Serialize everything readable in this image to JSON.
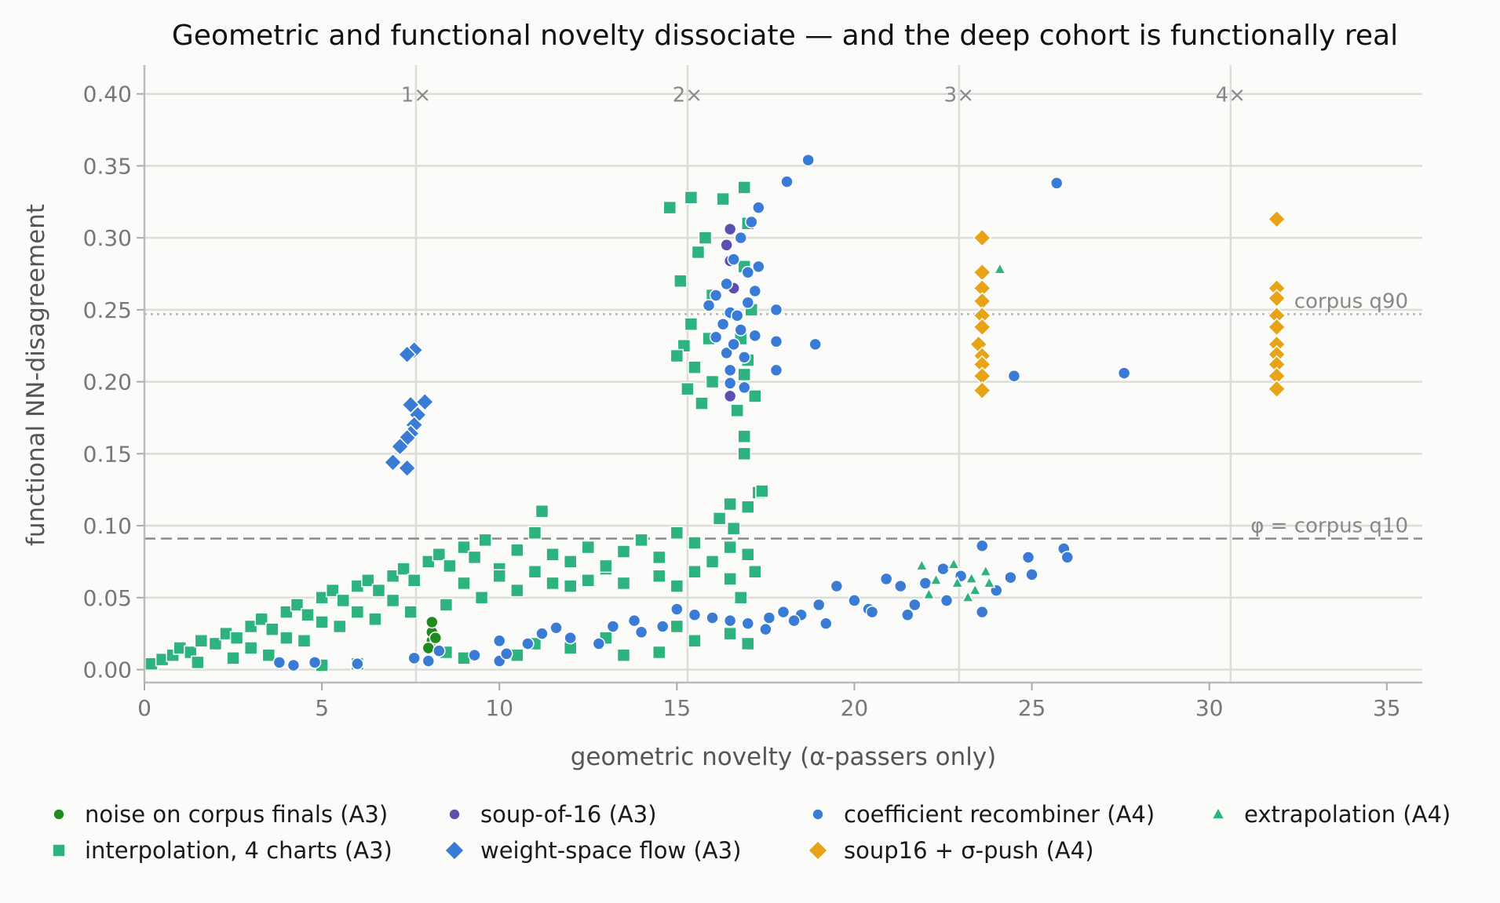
{
  "chart_data": {
    "type": "scatter",
    "title": "Geometric and functional novelty dissociate — and the deep cohort is functionally real",
    "xlabel": "geometric novelty (α-passers only)",
    "ylabel": "functional NN-disagreement",
    "xlim": [
      0,
      36
    ],
    "ylim": [
      -0.009,
      0.42
    ],
    "xticks": [
      "0",
      "5",
      "10",
      "15",
      "20",
      "25",
      "30",
      "35"
    ],
    "yticks": [
      "0.00",
      "0.05",
      "0.10",
      "0.15",
      "0.20",
      "0.25",
      "0.30",
      "0.35",
      "0.40"
    ],
    "grid": true,
    "vlines": [
      {
        "x": 7.65,
        "label": "1×"
      },
      {
        "x": 15.3,
        "label": "2×"
      },
      {
        "x": 22.95,
        "label": "3×"
      },
      {
        "x": 30.6,
        "label": "4×"
      }
    ],
    "hlines": [
      {
        "y": 0.247,
        "label": "corpus q90",
        "style": "dotted"
      },
      {
        "y": 0.091,
        "label": "φ = corpus q10",
        "style": "dashed"
      }
    ],
    "legend_position": "bottom",
    "series": [
      {
        "name": "noise on corpus finals (A3)",
        "color": "#1f8a1f",
        "marker": "circle",
        "points": [
          [
            8.1,
            0.02
          ],
          [
            8.1,
            0.026
          ],
          [
            8.1,
            0.033
          ],
          [
            8.0,
            0.015
          ],
          [
            8.2,
            0.022
          ]
        ]
      },
      {
        "name": "interpolation, 4 charts (A3)",
        "color": "#2db37d",
        "marker": "square",
        "points": [
          [
            0.2,
            0.004
          ],
          [
            0.5,
            0.007
          ],
          [
            0.8,
            0.01
          ],
          [
            1.0,
            0.015
          ],
          [
            1.3,
            0.012
          ],
          [
            1.6,
            0.02
          ],
          [
            2.0,
            0.018
          ],
          [
            2.3,
            0.025
          ],
          [
            2.6,
            0.022
          ],
          [
            3.0,
            0.03
          ],
          [
            3.3,
            0.035
          ],
          [
            3.6,
            0.028
          ],
          [
            4.0,
            0.04
          ],
          [
            4.3,
            0.045
          ],
          [
            4.6,
            0.038
          ],
          [
            5.0,
            0.05
          ],
          [
            5.3,
            0.055
          ],
          [
            5.6,
            0.048
          ],
          [
            6.0,
            0.058
          ],
          [
            6.3,
            0.062
          ],
          [
            6.6,
            0.055
          ],
          [
            7.0,
            0.065
          ],
          [
            7.3,
            0.07
          ],
          [
            7.6,
            0.062
          ],
          [
            8.0,
            0.075
          ],
          [
            8.3,
            0.08
          ],
          [
            8.6,
            0.072
          ],
          [
            9.0,
            0.085
          ],
          [
            9.3,
            0.078
          ],
          [
            9.6,
            0.09
          ],
          [
            10.0,
            0.07
          ],
          [
            10.5,
            0.083
          ],
          [
            11.0,
            0.095
          ],
          [
            11.2,
            0.11
          ],
          [
            11.5,
            0.08
          ],
          [
            12.0,
            0.075
          ],
          [
            12.5,
            0.085
          ],
          [
            13.0,
            0.07
          ],
          [
            13.5,
            0.082
          ],
          [
            14.0,
            0.09
          ],
          [
            14.5,
            0.078
          ],
          [
            15.0,
            0.095
          ],
          [
            15.5,
            0.088
          ],
          [
            16.0,
            0.075
          ],
          [
            16.5,
            0.085
          ],
          [
            17.0,
            0.08
          ],
          [
            17.2,
            0.068
          ],
          [
            1.5,
            0.005
          ],
          [
            2.5,
            0.008
          ],
          [
            3.5,
            0.01
          ],
          [
            4.5,
            0.02
          ],
          [
            5.5,
            0.03
          ],
          [
            6.5,
            0.035
          ],
          [
            7.5,
            0.04
          ],
          [
            8.5,
            0.045
          ],
          [
            9.5,
            0.05
          ],
          [
            10.5,
            0.055
          ],
          [
            11.5,
            0.06
          ],
          [
            12.5,
            0.062
          ],
          [
            13.5,
            0.06
          ],
          [
            14.5,
            0.065
          ],
          [
            15.5,
            0.068
          ],
          [
            16.5,
            0.063
          ],
          [
            9.0,
            0.06
          ],
          [
            10.0,
            0.065
          ],
          [
            12.0,
            0.058
          ],
          [
            6.0,
            0.04
          ],
          [
            5.0,
            0.033
          ],
          [
            4.0,
            0.022
          ],
          [
            3.0,
            0.015
          ],
          [
            7.0,
            0.048
          ],
          [
            11.0,
            0.068
          ],
          [
            13.0,
            0.072
          ],
          [
            15.0,
            0.058
          ],
          [
            16.8,
            0.05
          ],
          [
            5.0,
            0.003
          ],
          [
            6.0,
            0.004
          ],
          [
            8.5,
            0.012
          ],
          [
            9.0,
            0.008
          ],
          [
            10.5,
            0.01
          ],
          [
            12.0,
            0.015
          ],
          [
            13.5,
            0.01
          ],
          [
            14.5,
            0.012
          ],
          [
            15.5,
            0.02
          ],
          [
            16.5,
            0.025
          ],
          [
            17.0,
            0.018
          ],
          [
            15.0,
            0.03
          ],
          [
            13.0,
            0.022
          ],
          [
            11.0,
            0.018
          ],
          [
            14.8,
            0.321
          ],
          [
            15.4,
            0.328
          ],
          [
            15.8,
            0.3
          ],
          [
            16.3,
            0.327
          ],
          [
            15.1,
            0.27
          ],
          [
            15.6,
            0.29
          ],
          [
            16.0,
            0.26
          ],
          [
            15.4,
            0.24
          ],
          [
            15.2,
            0.225
          ],
          [
            15.9,
            0.23
          ],
          [
            15.5,
            0.21
          ],
          [
            15.3,
            0.195
          ],
          [
            15.7,
            0.185
          ],
          [
            16.0,
            0.2
          ],
          [
            15.0,
            0.218
          ],
          [
            16.9,
            0.335
          ],
          [
            17.0,
            0.31
          ],
          [
            16.9,
            0.28
          ],
          [
            17.1,
            0.25
          ],
          [
            16.8,
            0.23
          ],
          [
            17.0,
            0.215
          ],
          [
            16.9,
            0.205
          ],
          [
            17.2,
            0.19
          ],
          [
            16.7,
            0.18
          ],
          [
            16.9,
            0.162
          ],
          [
            16.9,
            0.15
          ],
          [
            17.3,
            0.123
          ],
          [
            17.4,
            0.124
          ],
          [
            16.5,
            0.115
          ],
          [
            17.0,
            0.113
          ],
          [
            16.2,
            0.105
          ],
          [
            16.6,
            0.098
          ]
        ]
      },
      {
        "name": "soup-of-16 (A3)",
        "color": "#5b4fb0",
        "marker": "circle",
        "points": [
          [
            16.5,
            0.306
          ],
          [
            16.4,
            0.295
          ],
          [
            16.5,
            0.284
          ],
          [
            16.5,
            0.19
          ],
          [
            16.6,
            0.265
          ],
          [
            16.4,
            0.22
          ]
        ]
      },
      {
        "name": "weight-space flow (A3)",
        "color": "#3a7bd5",
        "marker": "diamond",
        "points": [
          [
            7.6,
            0.222
          ],
          [
            7.4,
            0.219
          ],
          [
            7.5,
            0.184
          ],
          [
            7.9,
            0.186
          ],
          [
            7.7,
            0.177
          ],
          [
            7.6,
            0.17
          ],
          [
            7.5,
            0.164
          ],
          [
            7.4,
            0.161
          ],
          [
            7.2,
            0.155
          ],
          [
            7.0,
            0.144
          ],
          [
            7.4,
            0.14
          ]
        ]
      },
      {
        "name": "coefficient recombiner (A4)",
        "color": "#3a7bd5",
        "marker": "circle",
        "points": [
          [
            18.7,
            0.354
          ],
          [
            18.1,
            0.339
          ],
          [
            25.7,
            0.338
          ],
          [
            17.3,
            0.321
          ],
          [
            17.1,
            0.311
          ],
          [
            16.8,
            0.3
          ],
          [
            17.3,
            0.28
          ],
          [
            16.6,
            0.285
          ],
          [
            17.0,
            0.276
          ],
          [
            16.4,
            0.268
          ],
          [
            17.2,
            0.263
          ],
          [
            16.1,
            0.26
          ],
          [
            15.9,
            0.253
          ],
          [
            17.8,
            0.25
          ],
          [
            16.5,
            0.248
          ],
          [
            16.3,
            0.24
          ],
          [
            16.8,
            0.236
          ],
          [
            17.2,
            0.232
          ],
          [
            17.8,
            0.228
          ],
          [
            18.9,
            0.226
          ],
          [
            16.4,
            0.22
          ],
          [
            16.9,
            0.217
          ],
          [
            16.5,
            0.208
          ],
          [
            17.8,
            0.208
          ],
          [
            16.5,
            0.199
          ],
          [
            16.9,
            0.196
          ],
          [
            24.5,
            0.204
          ],
          [
            27.6,
            0.206
          ],
          [
            16.1,
            0.231
          ],
          [
            16.7,
            0.246
          ],
          [
            17.0,
            0.255
          ],
          [
            16.6,
            0.226
          ],
          [
            3.8,
            0.005
          ],
          [
            4.2,
            0.003
          ],
          [
            4.8,
            0.005
          ],
          [
            6.0,
            0.004
          ],
          [
            7.6,
            0.008
          ],
          [
            8.0,
            0.006
          ],
          [
            8.3,
            0.013
          ],
          [
            9.3,
            0.01
          ],
          [
            10.0,
            0.006
          ],
          [
            10.2,
            0.011
          ],
          [
            10.0,
            0.02
          ],
          [
            10.8,
            0.018
          ],
          [
            11.2,
            0.025
          ],
          [
            11.6,
            0.029
          ],
          [
            12.0,
            0.022
          ],
          [
            12.8,
            0.018
          ],
          [
            13.2,
            0.03
          ],
          [
            13.8,
            0.034
          ],
          [
            14.0,
            0.026
          ],
          [
            14.6,
            0.03
          ],
          [
            15.0,
            0.042
          ],
          [
            15.5,
            0.038
          ],
          [
            16.0,
            0.036
          ],
          [
            16.5,
            0.034
          ],
          [
            17.0,
            0.032
          ],
          [
            17.5,
            0.028
          ],
          [
            18.0,
            0.04
          ],
          [
            18.5,
            0.038
          ],
          [
            19.0,
            0.045
          ],
          [
            19.5,
            0.058
          ],
          [
            20.0,
            0.048
          ],
          [
            20.4,
            0.042
          ],
          [
            20.9,
            0.063
          ],
          [
            21.3,
            0.058
          ],
          [
            21.7,
            0.045
          ],
          [
            22.0,
            0.06
          ],
          [
            22.5,
            0.07
          ],
          [
            23.0,
            0.065
          ],
          [
            23.6,
            0.086
          ],
          [
            24.0,
            0.055
          ],
          [
            24.4,
            0.064
          ],
          [
            24.9,
            0.078
          ],
          [
            25.0,
            0.066
          ],
          [
            25.9,
            0.084
          ],
          [
            26.0,
            0.078
          ],
          [
            23.6,
            0.04
          ],
          [
            22.6,
            0.048
          ],
          [
            21.5,
            0.038
          ],
          [
            20.5,
            0.04
          ],
          [
            19.2,
            0.032
          ],
          [
            18.3,
            0.034
          ],
          [
            17.6,
            0.036
          ]
        ]
      },
      {
        "name": "soup16 + σ-push (A4)",
        "color": "#e8a317",
        "marker": "diamond",
        "points": [
          [
            23.6,
            0.3
          ],
          [
            23.6,
            0.276
          ],
          [
            23.6,
            0.265
          ],
          [
            23.6,
            0.256
          ],
          [
            23.6,
            0.246
          ],
          [
            23.6,
            0.238
          ],
          [
            23.5,
            0.226
          ],
          [
            23.6,
            0.218
          ],
          [
            23.6,
            0.212
          ],
          [
            23.6,
            0.204
          ],
          [
            23.6,
            0.194
          ],
          [
            31.9,
            0.313
          ],
          [
            31.9,
            0.265
          ],
          [
            31.9,
            0.258
          ],
          [
            31.9,
            0.246
          ],
          [
            31.9,
            0.238
          ],
          [
            31.9,
            0.226
          ],
          [
            31.9,
            0.219
          ],
          [
            31.9,
            0.212
          ],
          [
            31.9,
            0.204
          ],
          [
            31.9,
            0.195
          ]
        ]
      },
      {
        "name": "extrapolation (A4)",
        "color": "#2db37d",
        "marker": "triangle",
        "points": [
          [
            24.1,
            0.278
          ],
          [
            21.9,
            0.072
          ],
          [
            22.8,
            0.073
          ],
          [
            22.3,
            0.062
          ],
          [
            22.9,
            0.06
          ],
          [
            23.3,
            0.063
          ],
          [
            23.7,
            0.068
          ],
          [
            23.4,
            0.055
          ],
          [
            23.8,
            0.06
          ],
          [
            22.1,
            0.052
          ],
          [
            23.2,
            0.05
          ]
        ]
      }
    ]
  }
}
